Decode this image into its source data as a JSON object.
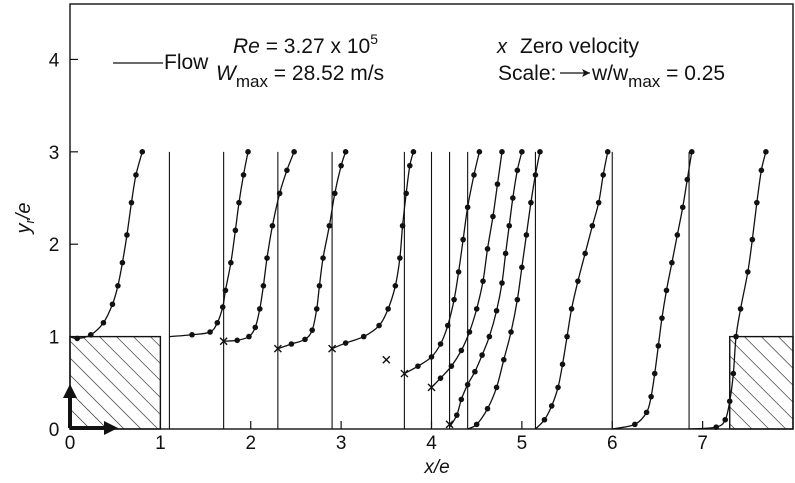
{
  "chart_data": {
    "type": "line",
    "xlabel": "x/e",
    "ylabel_main": "y",
    "ylabel_sub": "r",
    "ylabel_tail": "/e",
    "xlim": [
      0,
      8
    ],
    "ylim": [
      0,
      4.6
    ],
    "x_ticks": [
      0,
      1,
      2,
      3,
      4,
      5,
      6,
      7
    ],
    "x_tick_labels": [
      "0",
      "1",
      "2",
      "3",
      "4",
      "5",
      "6",
      "7"
    ],
    "y_ticks": [
      1,
      2,
      3,
      4
    ],
    "y_tick_labels": [
      "1",
      "2",
      "3",
      "4"
    ],
    "annotations": {
      "re_lhs": "Re",
      "re_rhs": " = 3.27 x 10",
      "re_exp": "5",
      "flow_label": "Flow",
      "wmax_w": "W",
      "wmax_sub": "max",
      "wmax_rhs": " = 28.52 m/s",
      "zero_marker": "x",
      "zero_label": "Zero velocity",
      "scale_label": "Scale:",
      "scale_w": "w/w",
      "scale_sub": "max",
      "scale_rhs": " = 0.25"
    },
    "ribs": [
      {
        "x0": 0.0,
        "x1": 1.0,
        "height": 1.0
      },
      {
        "x0": 7.3,
        "x1": 8.0,
        "height": 1.0
      }
    ],
    "zero_velocity_points": [
      [
        1.7,
        0.95
      ],
      [
        2.3,
        0.87
      ],
      [
        2.9,
        0.87
      ],
      [
        3.5,
        0.75
      ],
      [
        3.7,
        0.6
      ],
      [
        4.0,
        0.45
      ],
      [
        4.2,
        0.05
      ]
    ],
    "profiles": [
      {
        "station": 0.0,
        "points": [
          [
            0.0,
            1.0
          ],
          [
            0.08,
            0.98
          ],
          [
            0.23,
            1.02
          ],
          [
            0.37,
            1.15
          ],
          [
            0.47,
            1.35
          ],
          [
            0.53,
            1.55
          ],
          [
            0.58,
            1.8
          ],
          [
            0.63,
            2.1
          ],
          [
            0.68,
            2.45
          ],
          [
            0.73,
            2.75
          ],
          [
            0.8,
            3.0
          ]
        ]
      },
      {
        "station": 1.1,
        "points": [
          [
            1.1,
            1.0
          ],
          [
            1.35,
            1.02
          ],
          [
            1.55,
            1.05
          ],
          [
            1.63,
            1.15
          ],
          [
            1.69,
            1.32
          ],
          [
            1.72,
            1.5
          ],
          [
            1.78,
            1.8
          ],
          [
            1.83,
            2.15
          ],
          [
            1.87,
            2.45
          ],
          [
            1.92,
            2.75
          ],
          [
            1.97,
            3.0
          ]
        ]
      },
      {
        "station": 1.7,
        "points": [
          [
            1.7,
            0.95
          ],
          [
            1.85,
            0.96
          ],
          [
            1.98,
            1.0
          ],
          [
            2.05,
            1.1
          ],
          [
            2.1,
            1.3
          ],
          [
            2.14,
            1.55
          ],
          [
            2.18,
            1.85
          ],
          [
            2.24,
            2.2
          ],
          [
            2.32,
            2.55
          ],
          [
            2.4,
            2.8
          ],
          [
            2.48,
            3.0
          ]
        ]
      },
      {
        "station": 2.3,
        "points": [
          [
            2.3,
            0.87
          ],
          [
            2.45,
            0.92
          ],
          [
            2.6,
            0.97
          ],
          [
            2.68,
            1.07
          ],
          [
            2.73,
            1.3
          ],
          [
            2.76,
            1.55
          ],
          [
            2.8,
            1.85
          ],
          [
            2.87,
            2.2
          ],
          [
            2.93,
            2.55
          ],
          [
            3.0,
            2.85
          ],
          [
            3.05,
            3.0
          ]
        ]
      },
      {
        "station": 2.9,
        "points": [
          [
            2.9,
            0.87
          ],
          [
            3.05,
            0.93
          ],
          [
            3.25,
            1.0
          ],
          [
            3.42,
            1.12
          ],
          [
            3.52,
            1.3
          ],
          [
            3.6,
            1.55
          ],
          [
            3.65,
            1.85
          ],
          [
            3.68,
            2.2
          ],
          [
            3.72,
            2.55
          ],
          [
            3.76,
            2.85
          ],
          [
            3.8,
            3.0
          ]
        ]
      },
      {
        "station": 3.7,
        "points": [
          [
            3.7,
            0.6
          ],
          [
            3.85,
            0.68
          ],
          [
            4.0,
            0.78
          ],
          [
            4.1,
            0.92
          ],
          [
            4.18,
            1.12
          ],
          [
            4.25,
            1.4
          ],
          [
            4.3,
            1.7
          ],
          [
            4.35,
            2.05
          ],
          [
            4.4,
            2.4
          ],
          [
            4.47,
            2.75
          ],
          [
            4.53,
            3.0
          ]
        ]
      },
      {
        "station": 4.0,
        "points": [
          [
            4.0,
            0.45
          ],
          [
            4.1,
            0.55
          ],
          [
            4.22,
            0.68
          ],
          [
            4.33,
            0.85
          ],
          [
            4.42,
            1.05
          ],
          [
            4.5,
            1.3
          ],
          [
            4.57,
            1.6
          ],
          [
            4.62,
            1.95
          ],
          [
            4.68,
            2.3
          ],
          [
            4.73,
            2.65
          ],
          [
            4.78,
            3.0
          ]
        ]
      },
      {
        "station": 4.2,
        "points": [
          [
            4.2,
            0.02
          ],
          [
            4.28,
            0.15
          ],
          [
            4.33,
            0.32
          ],
          [
            4.4,
            0.48
          ],
          [
            4.48,
            0.62
          ],
          [
            4.56,
            0.8
          ],
          [
            4.64,
            1.0
          ],
          [
            4.72,
            1.28
          ],
          [
            4.78,
            1.58
          ],
          [
            4.82,
            1.9
          ],
          [
            4.86,
            2.2
          ],
          [
            4.9,
            2.5
          ],
          [
            4.95,
            2.8
          ],
          [
            5.0,
            3.0
          ]
        ]
      },
      {
        "station": 4.4,
        "points": [
          [
            4.4,
            0.0
          ],
          [
            4.5,
            0.05
          ],
          [
            4.62,
            0.22
          ],
          [
            4.72,
            0.45
          ],
          [
            4.8,
            0.75
          ],
          [
            4.88,
            1.05
          ],
          [
            4.95,
            1.4
          ],
          [
            5.0,
            1.75
          ],
          [
            5.05,
            2.1
          ],
          [
            5.1,
            2.45
          ],
          [
            5.15,
            2.75
          ],
          [
            5.2,
            3.0
          ]
        ]
      },
      {
        "station": 5.15,
        "points": [
          [
            5.15,
            0.0
          ],
          [
            5.25,
            0.1
          ],
          [
            5.33,
            0.25
          ],
          [
            5.4,
            0.45
          ],
          [
            5.45,
            0.7
          ],
          [
            5.5,
            1.0
          ],
          [
            5.55,
            1.3
          ],
          [
            5.62,
            1.6
          ],
          [
            5.7,
            1.9
          ],
          [
            5.78,
            2.2
          ],
          [
            5.85,
            2.45
          ],
          [
            5.9,
            2.75
          ],
          [
            5.95,
            3.0
          ]
        ]
      },
      {
        "station": 6.0,
        "points": [
          [
            6.0,
            0.0
          ],
          [
            6.25,
            0.05
          ],
          [
            6.38,
            0.18
          ],
          [
            6.43,
            0.35
          ],
          [
            6.47,
            0.6
          ],
          [
            6.51,
            0.9
          ],
          [
            6.55,
            1.2
          ],
          [
            6.6,
            1.5
          ],
          [
            6.66,
            1.8
          ],
          [
            6.72,
            2.1
          ],
          [
            6.78,
            2.4
          ],
          [
            6.83,
            2.7
          ],
          [
            6.88,
            3.0
          ]
        ]
      },
      {
        "station": 6.85,
        "points": [
          [
            6.85,
            0.0
          ],
          [
            7.15,
            0.02
          ],
          [
            7.25,
            0.1
          ],
          [
            7.3,
            0.3
          ],
          [
            7.34,
            0.6
          ],
          [
            7.37,
            1.0
          ],
          [
            7.42,
            1.3
          ],
          [
            7.5,
            1.7
          ],
          [
            7.55,
            2.05
          ],
          [
            7.6,
            2.45
          ],
          [
            7.65,
            2.8
          ],
          [
            7.7,
            3.0
          ]
        ]
      }
    ]
  }
}
